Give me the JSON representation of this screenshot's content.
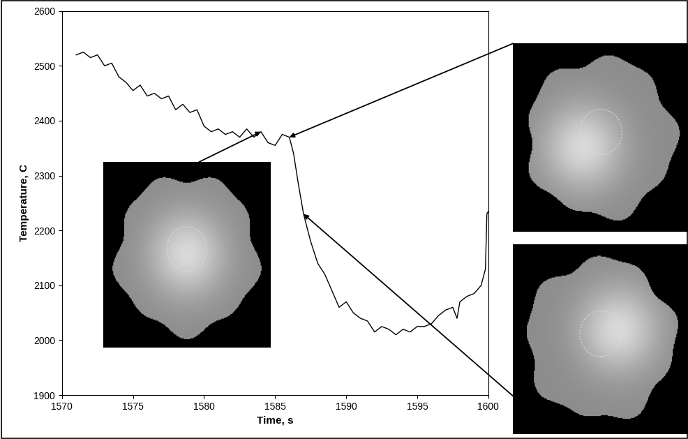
{
  "chart_data": {
    "type": "line",
    "x_label": "Time, s",
    "y_label": "Temperature, C",
    "x": [
      1571,
      1571.5,
      1572,
      1572.5,
      1573,
      1573.5,
      1574,
      1574.5,
      1575,
      1575.5,
      1576,
      1576.5,
      1577,
      1577.5,
      1578,
      1578.5,
      1579,
      1579.5,
      1580,
      1580.5,
      1581,
      1581.5,
      1582,
      1582.5,
      1583,
      1583.5,
      1584,
      1584.5,
      1585,
      1585.5,
      1586,
      1586.3,
      1586.6,
      1587,
      1587.5,
      1588,
      1588.5,
      1589,
      1589.5,
      1590,
      1590.5,
      1591,
      1591.5,
      1592,
      1592.5,
      1593,
      1593.5,
      1594,
      1594.5,
      1595,
      1595.5,
      1596,
      1596.5,
      1597,
      1597.5,
      1597.8,
      1598,
      1598.5,
      1599,
      1599.5,
      1599.8,
      1599.9,
      1600
    ],
    "values": [
      2520,
      2525,
      2515,
      2520,
      2500,
      2505,
      2480,
      2470,
      2455,
      2465,
      2445,
      2450,
      2440,
      2445,
      2420,
      2430,
      2415,
      2420,
      2390,
      2380,
      2385,
      2375,
      2380,
      2370,
      2385,
      2370,
      2380,
      2360,
      2355,
      2375,
      2370,
      2340,
      2290,
      2230,
      2180,
      2140,
      2120,
      2090,
      2060,
      2070,
      2050,
      2040,
      2035,
      2015,
      2025,
      2020,
      2010,
      2020,
      2015,
      2025,
      2025,
      2030,
      2045,
      2055,
      2060,
      2040,
      2070,
      2080,
      2085,
      2100,
      2130,
      2230,
      2235
    ],
    "color": "#000000",
    "xlim": [
      1570,
      1600
    ],
    "xticks": [
      1570,
      1575,
      1580,
      1585,
      1590,
      1595,
      1600
    ],
    "ylim": [
      1900,
      2600
    ],
    "yticks": [
      1900,
      2000,
      2100,
      2200,
      2300,
      2400,
      2500,
      2600
    ],
    "grid": false
  }
}
